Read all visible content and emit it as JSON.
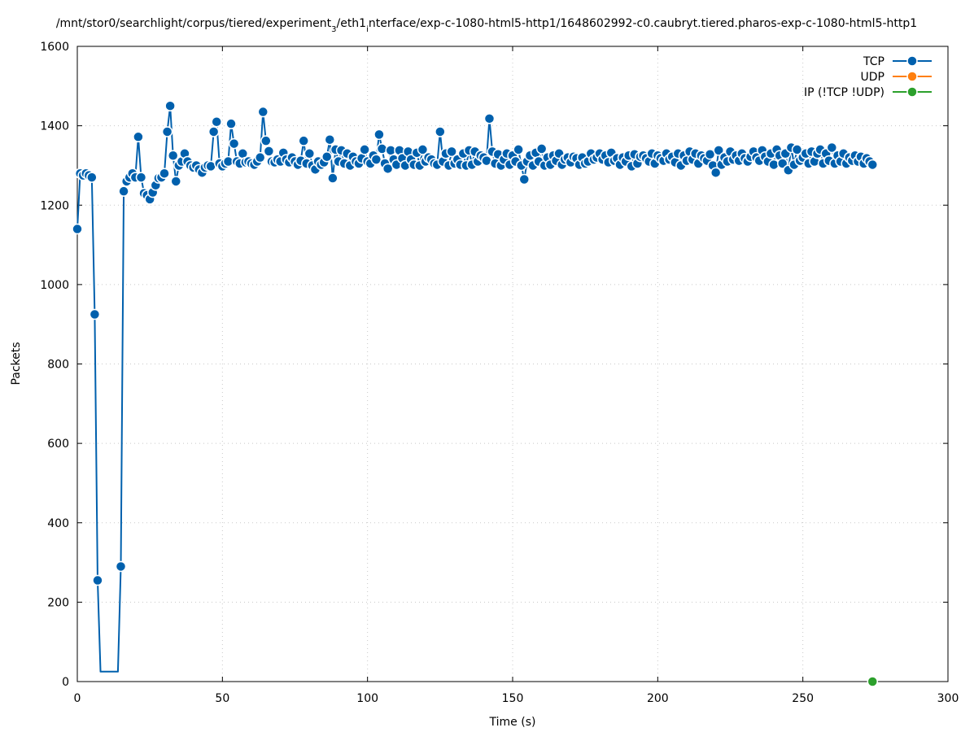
{
  "chart_data": {
    "type": "line",
    "title": "/mnt/stor0/searchlight/corpus/tiered/experiment",
    "title_sub": "3",
    "title_rest": "/eth1",
    "title_sub2": "i",
    "title_tail": "nterface/exp-c-1080-html5-http1/1648602992-c0.caubryt.tiered.pharos-exp-c-1080-html5-http1",
    "xlabel": "Time (s)",
    "ylabel": "Packets",
    "xlim": [
      0,
      300
    ],
    "ylim": [
      0,
      1600
    ],
    "xticks": [
      0,
      50,
      100,
      150,
      200,
      250,
      300
    ],
    "yticks": [
      0,
      200,
      400,
      600,
      800,
      1000,
      1200,
      1400,
      1600
    ],
    "grid": true,
    "legend_position": "top-right",
    "series": [
      {
        "name": "TCP",
        "color": "#0060ad",
        "points": [
          [
            0,
            1140
          ],
          [
            1,
            1280
          ],
          [
            2,
            1275
          ],
          [
            3,
            1280
          ],
          [
            4,
            1275
          ],
          [
            5,
            1270
          ],
          [
            6,
            925
          ],
          [
            7,
            255
          ],
          [
            8,
            25
          ],
          [
            14,
            25
          ],
          [
            15,
            290
          ],
          [
            16,
            1235
          ],
          [
            17,
            1260
          ],
          [
            18,
            1270
          ],
          [
            19,
            1280
          ],
          [
            20,
            1270
          ],
          [
            21,
            1372
          ],
          [
            22,
            1270
          ],
          [
            23,
            1230
          ],
          [
            24,
            1225
          ],
          [
            25,
            1215
          ],
          [
            26,
            1232
          ],
          [
            27,
            1250
          ],
          [
            28,
            1268
          ],
          [
            29,
            1270
          ],
          [
            30,
            1280
          ],
          [
            31,
            1385
          ],
          [
            32,
            1450
          ],
          [
            33,
            1325
          ],
          [
            34,
            1260
          ],
          [
            35,
            1300
          ],
          [
            36,
            1310
          ],
          [
            37,
            1330
          ],
          [
            38,
            1310
          ],
          [
            39,
            1300
          ],
          [
            40,
            1295
          ],
          [
            41,
            1300
          ],
          [
            42,
            1290
          ],
          [
            43,
            1282
          ],
          [
            44,
            1295
          ],
          [
            45,
            1300
          ],
          [
            46,
            1298
          ],
          [
            47,
            1385
          ],
          [
            48,
            1410
          ],
          [
            49,
            1305
          ],
          [
            50,
            1298
          ],
          [
            51,
            1305
          ],
          [
            52,
            1310
          ],
          [
            53,
            1405
          ],
          [
            54,
            1355
          ],
          [
            55,
            1310
          ],
          [
            56,
            1305
          ],
          [
            57,
            1330
          ],
          [
            58,
            1308
          ],
          [
            59,
            1310
          ],
          [
            60,
            1305
          ],
          [
            61,
            1302
          ],
          [
            62,
            1310
          ],
          [
            63,
            1320
          ],
          [
            64,
            1435
          ],
          [
            65,
            1362
          ],
          [
            66,
            1336
          ],
          [
            67,
            1310
          ],
          [
            68,
            1308
          ],
          [
            69,
            1315
          ],
          [
            70,
            1310
          ],
          [
            71,
            1332
          ],
          [
            72,
            1315
          ],
          [
            73,
            1308
          ],
          [
            74,
            1320
          ],
          [
            75,
            1310
          ],
          [
            76,
            1302
          ],
          [
            77,
            1312
          ],
          [
            78,
            1362
          ],
          [
            79,
            1305
          ],
          [
            80,
            1330
          ],
          [
            81,
            1300
          ],
          [
            82,
            1290
          ],
          [
            83,
            1310
          ],
          [
            84,
            1302
          ],
          [
            85,
            1308
          ],
          [
            86,
            1322
          ],
          [
            87,
            1365
          ],
          [
            88,
            1268
          ],
          [
            89,
            1340
          ],
          [
            90,
            1310
          ],
          [
            91,
            1338
          ],
          [
            92,
            1305
          ],
          [
            93,
            1330
          ],
          [
            94,
            1300
          ],
          [
            95,
            1322
          ],
          [
            96,
            1310
          ],
          [
            97,
            1305
          ],
          [
            98,
            1318
          ],
          [
            99,
            1340
          ],
          [
            100,
            1310
          ],
          [
            101,
            1305
          ],
          [
            102,
            1325
          ],
          [
            103,
            1315
          ],
          [
            104,
            1378
          ],
          [
            105,
            1342
          ],
          [
            106,
            1305
          ],
          [
            107,
            1292
          ],
          [
            108,
            1338
          ],
          [
            109,
            1315
          ],
          [
            110,
            1302
          ],
          [
            111,
            1338
          ],
          [
            112,
            1318
          ],
          [
            113,
            1300
          ],
          [
            114,
            1335
          ],
          [
            115,
            1315
          ],
          [
            116,
            1302
          ],
          [
            117,
            1332
          ],
          [
            118,
            1300
          ],
          [
            119,
            1340
          ],
          [
            120,
            1310
          ],
          [
            121,
            1320
          ],
          [
            122,
            1315
          ],
          [
            123,
            1305
          ],
          [
            124,
            1302
          ],
          [
            125,
            1385
          ],
          [
            126,
            1310
          ],
          [
            127,
            1330
          ],
          [
            128,
            1300
          ],
          [
            129,
            1335
          ],
          [
            130,
            1305
          ],
          [
            131,
            1315
          ],
          [
            132,
            1302
          ],
          [
            133,
            1330
          ],
          [
            134,
            1300
          ],
          [
            135,
            1338
          ],
          [
            136,
            1302
          ],
          [
            137,
            1335
          ],
          [
            138,
            1310
          ],
          [
            139,
            1325
          ],
          [
            140,
            1320
          ],
          [
            141,
            1312
          ],
          [
            142,
            1418
          ],
          [
            143,
            1335
          ],
          [
            144,
            1305
          ],
          [
            145,
            1328
          ],
          [
            146,
            1300
          ],
          [
            147,
            1315
          ],
          [
            148,
            1330
          ],
          [
            149,
            1302
          ],
          [
            150,
            1325
          ],
          [
            151,
            1310
          ],
          [
            152,
            1340
          ],
          [
            153,
            1300
          ],
          [
            154,
            1265
          ],
          [
            155,
            1310
          ],
          [
            156,
            1325
          ],
          [
            157,
            1300
          ],
          [
            158,
            1332
          ],
          [
            159,
            1310
          ],
          [
            160,
            1342
          ],
          [
            161,
            1300
          ],
          [
            162,
            1320
          ],
          [
            163,
            1302
          ],
          [
            164,
            1325
          ],
          [
            165,
            1312
          ],
          [
            166,
            1330
          ],
          [
            167,
            1302
          ],
          [
            168,
            1315
          ],
          [
            169,
            1320
          ],
          [
            170,
            1308
          ],
          [
            171,
            1322
          ],
          [
            172,
            1318
          ],
          [
            173,
            1302
          ],
          [
            174,
            1320
          ],
          [
            175,
            1305
          ],
          [
            176,
            1310
          ],
          [
            177,
            1330
          ],
          [
            178,
            1315
          ],
          [
            179,
            1320
          ],
          [
            180,
            1330
          ],
          [
            181,
            1315
          ],
          [
            182,
            1325
          ],
          [
            183,
            1308
          ],
          [
            184,
            1332
          ],
          [
            185,
            1312
          ],
          [
            186,
            1318
          ],
          [
            187,
            1302
          ],
          [
            188,
            1320
          ],
          [
            189,
            1310
          ],
          [
            190,
            1325
          ],
          [
            191,
            1298
          ],
          [
            192,
            1328
          ],
          [
            193,
            1305
          ],
          [
            194,
            1322
          ],
          [
            195,
            1325
          ],
          [
            196,
            1318
          ],
          [
            197,
            1310
          ],
          [
            198,
            1330
          ],
          [
            199,
            1305
          ],
          [
            200,
            1325
          ],
          [
            201,
            1318
          ],
          [
            202,
            1312
          ],
          [
            203,
            1330
          ],
          [
            204,
            1315
          ],
          [
            205,
            1322
          ],
          [
            206,
            1308
          ],
          [
            207,
            1330
          ],
          [
            208,
            1300
          ],
          [
            209,
            1325
          ],
          [
            210,
            1312
          ],
          [
            211,
            1335
          ],
          [
            212,
            1315
          ],
          [
            213,
            1330
          ],
          [
            214,
            1305
          ],
          [
            215,
            1325
          ],
          [
            216,
            1318
          ],
          [
            217,
            1312
          ],
          [
            218,
            1328
          ],
          [
            219,
            1300
          ],
          [
            220,
            1282
          ],
          [
            221,
            1338
          ],
          [
            222,
            1302
          ],
          [
            223,
            1320
          ],
          [
            224,
            1310
          ],
          [
            225,
            1335
          ],
          [
            226,
            1315
          ],
          [
            227,
            1325
          ],
          [
            228,
            1312
          ],
          [
            229,
            1330
          ],
          [
            230,
            1318
          ],
          [
            231,
            1310
          ],
          [
            232,
            1322
          ],
          [
            233,
            1335
          ],
          [
            234,
            1320
          ],
          [
            235,
            1312
          ],
          [
            236,
            1338
          ],
          [
            237,
            1322
          ],
          [
            238,
            1310
          ],
          [
            239,
            1330
          ],
          [
            240,
            1302
          ],
          [
            241,
            1340
          ],
          [
            242,
            1325
          ],
          [
            243,
            1305
          ],
          [
            244,
            1330
          ],
          [
            245,
            1288
          ],
          [
            246,
            1345
          ],
          [
            247,
            1302
          ],
          [
            248,
            1340
          ],
          [
            249,
            1312
          ],
          [
            250,
            1320
          ],
          [
            251,
            1330
          ],
          [
            252,
            1305
          ],
          [
            253,
            1335
          ],
          [
            254,
            1310
          ],
          [
            255,
            1330
          ],
          [
            256,
            1340
          ],
          [
            257,
            1305
          ],
          [
            258,
            1330
          ],
          [
            259,
            1312
          ],
          [
            260,
            1345
          ],
          [
            261,
            1305
          ],
          [
            262,
            1325
          ],
          [
            263,
            1310
          ],
          [
            264,
            1330
          ],
          [
            265,
            1305
          ],
          [
            266,
            1320
          ],
          [
            267,
            1312
          ],
          [
            268,
            1325
          ],
          [
            269,
            1310
          ],
          [
            270,
            1322
          ],
          [
            271,
            1305
          ],
          [
            272,
            1318
          ],
          [
            273,
            1310
          ],
          [
            274,
            1302
          ]
        ]
      },
      {
        "name": "UDP",
        "color": "#ff7f0e",
        "points": []
      },
      {
        "name": "IP (!TCP  !UDP)",
        "color": "#2ca02c",
        "points": [
          [
            274,
            0
          ]
        ]
      }
    ]
  }
}
